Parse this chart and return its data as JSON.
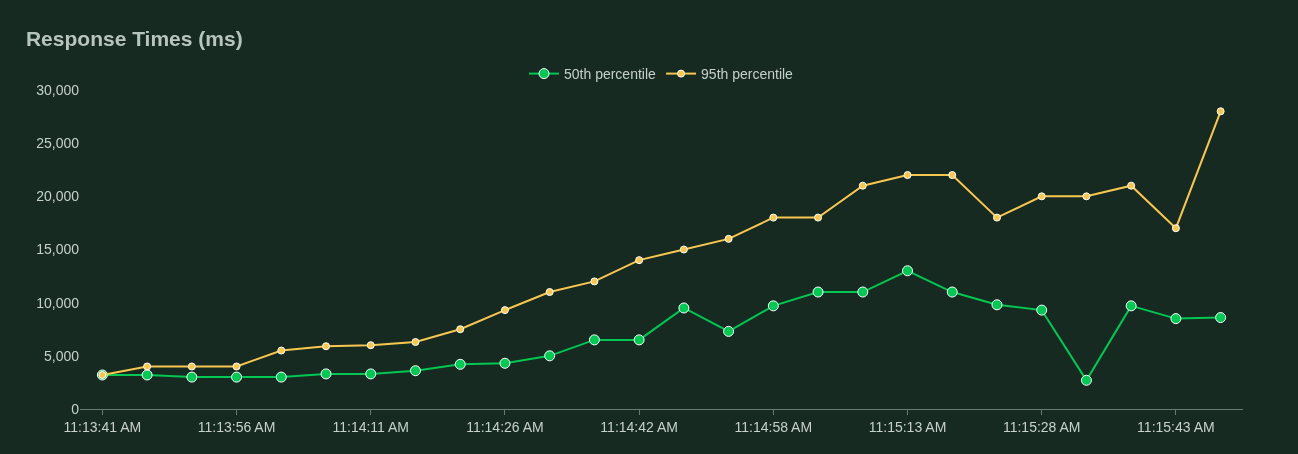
{
  "chart_data": {
    "type": "line",
    "title": "Response Times (ms)",
    "categories": [
      "11:13:41 AM",
      null,
      null,
      "11:13:56 AM",
      null,
      null,
      "11:14:11 AM",
      null,
      null,
      "11:14:26 AM",
      null,
      null,
      "11:14:42 AM",
      null,
      null,
      "11:14:58 AM",
      null,
      null,
      "11:15:13 AM",
      null,
      null,
      "11:15:28 AM",
      null,
      null,
      "11:15:43 AM",
      null
    ],
    "series": [
      {
        "name": "50th percentile",
        "color": "#00c853",
        "values": [
          3200,
          3200,
          3000,
          3000,
          3000,
          3300,
          3300,
          3600,
          4200,
          4300,
          5000,
          6500,
          6500,
          9500,
          7300,
          9700,
          11000,
          11000,
          13000,
          11000,
          9800,
          9300,
          2700,
          9700,
          8500,
          8600
        ]
      },
      {
        "name": "95th percentile",
        "color": "#f9c74f",
        "values": [
          3200,
          4000,
          4000,
          4000,
          5500,
          5900,
          6000,
          6300,
          7500,
          9300,
          11000,
          12000,
          14000,
          15000,
          16000,
          18000,
          18000,
          21000,
          22000,
          22000,
          18000,
          20000,
          20000,
          21000,
          17000,
          28000
        ]
      }
    ],
    "ylim": [
      0,
      30000
    ],
    "yticks": [
      {
        "value": 0,
        "label": "0"
      },
      {
        "value": 5000,
        "label": "5,000"
      },
      {
        "value": 10000,
        "label": "10,000"
      },
      {
        "value": 15000,
        "label": "15,000"
      },
      {
        "value": 20000,
        "label": "20,000"
      },
      {
        "value": 25000,
        "label": "25,000"
      },
      {
        "value": 30000,
        "label": "30,000"
      }
    ],
    "grid": false,
    "legend": "top",
    "marker": "circle",
    "line_style": "solid"
  }
}
